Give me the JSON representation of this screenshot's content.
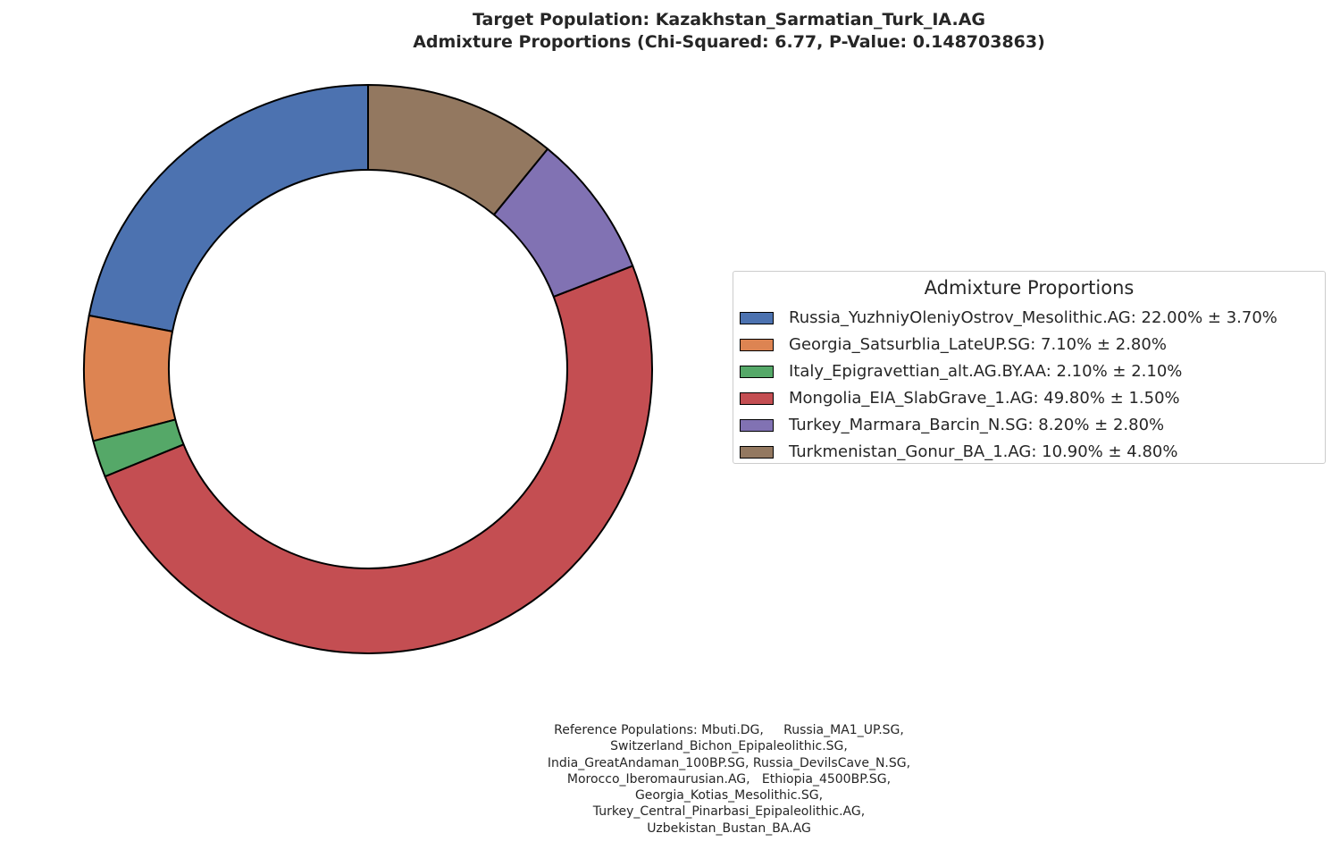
{
  "title": {
    "line1": "Target Population: Kazakhstan_Sarmatian_Turk_IA.AG",
    "line2": "Admixture Proportions (Chi-Squared: 6.77, P-Value: 0.148703863)"
  },
  "chart_data": {
    "type": "pie",
    "style": "donut",
    "start_angle_deg": 90,
    "direction": "counterclockwise",
    "legend_title": "Admixture Proportions",
    "legend_position": "right",
    "series": [
      {
        "name": "Russia_YuzhniyOleniyOstrov_Mesolithic.AG",
        "value": 22.0,
        "error": 3.7,
        "color": "#4c72b0",
        "label": "Russia_YuzhniyOleniyOstrov_Mesolithic.AG: 22.00% ± 3.70%"
      },
      {
        "name": "Georgia_Satsurblia_LateUP.SG",
        "value": 7.1,
        "error": 2.8,
        "color": "#dd8452",
        "label": "Georgia_Satsurblia_LateUP.SG: 7.10% ± 2.80%"
      },
      {
        "name": "Italy_Epigravettian_alt.AG.BY.AA",
        "value": 2.1,
        "error": 2.1,
        "color": "#55a868",
        "label": "Italy_Epigravettian_alt.AG.BY.AA: 2.10% ± 2.10%"
      },
      {
        "name": "Mongolia_EIA_SlabGrave_1.AG",
        "value": 49.8,
        "error": 1.5,
        "color": "#c44e52",
        "label": "Mongolia_EIA_SlabGrave_1.AG: 49.80% ± 1.50%"
      },
      {
        "name": "Turkey_Marmara_Barcin_N.SG",
        "value": 8.2,
        "error": 2.8,
        "color": "#8172b3",
        "label": "Turkey_Marmara_Barcin_N.SG: 8.20% ± 2.80%"
      },
      {
        "name": "Turkmenistan_Gonur_BA_1.AG",
        "value": 10.9,
        "error": 4.8,
        "color": "#937860",
        "label": "Turkmenistan_Gonur_BA_1.AG: 10.90% ± 4.80%"
      }
    ]
  },
  "footnote": {
    "lines": [
      "Reference Populations: Mbuti.DG,     Russia_MA1_UP.SG,",
      "Switzerland_Bichon_Epipaleolithic.SG,",
      "India_GreatAndaman_100BP.SG, Russia_DevilsCave_N.SG,",
      "Morocco_Iberomaurusian.AG,   Ethiopia_4500BP.SG,",
      "Georgia_Kotias_Mesolithic.SG,",
      "Turkey_Central_Pinarbasi_Epipaleolithic.AG,",
      "Uzbekistan_Bustan_BA.AG"
    ]
  }
}
